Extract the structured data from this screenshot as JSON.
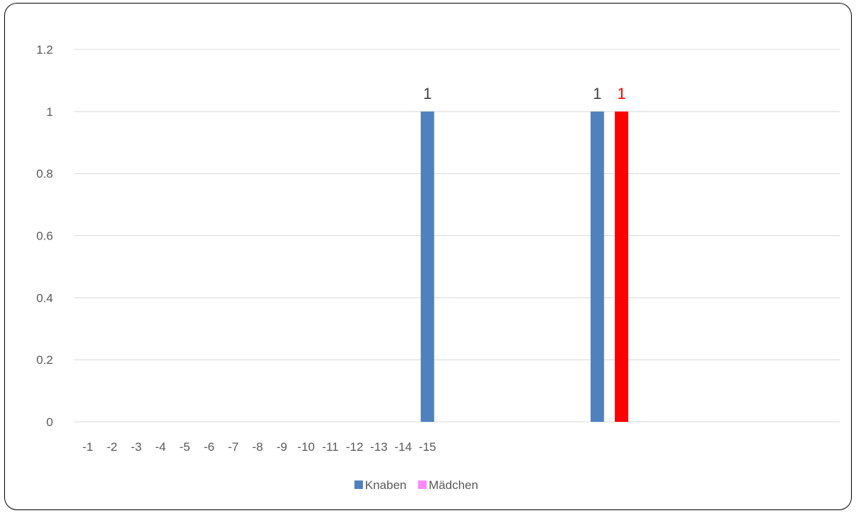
{
  "chart_data": {
    "type": "bar",
    "title": "",
    "xlabel": "",
    "ylabel": "",
    "ylim": [
      0,
      1.2
    ],
    "yticks": [
      "0",
      "0.2",
      "0.4",
      "0.6",
      "0.8",
      "1",
      "1.2"
    ],
    "grid": true,
    "legend_position": "bottom",
    "categories": [
      "-1",
      "-2",
      "-3",
      "-4",
      "-5",
      "-6",
      "-7",
      "-8",
      "-9",
      "-10",
      "-11",
      "-12",
      "-13",
      "-14",
      "-15",
      "",
      "",
      "",
      "",
      "",
      "",
      "",
      ""
    ],
    "series": [
      {
        "name": "Knaben",
        "color": "#4f81bd",
        "values": [
          0,
          0,
          0,
          0,
          0,
          0,
          0,
          0,
          0,
          0,
          0,
          0,
          0,
          0,
          1,
          0,
          0,
          0,
          0,
          0,
          0,
          1,
          0
        ]
      },
      {
        "name": "Mädchen",
        "color": "#ff88ff",
        "values": [
          0,
          0,
          0,
          0,
          0,
          0,
          0,
          0,
          0,
          0,
          0,
          0,
          0,
          0,
          0,
          0,
          0,
          0,
          0,
          0,
          0,
          0,
          1
        ]
      }
    ],
    "point_overrides": [
      {
        "series": "Mädchen",
        "category_index": 22,
        "color": "#ff0000"
      }
    ],
    "data_labels": [
      {
        "series": "Knaben",
        "category_index": 14,
        "text": "1",
        "color": "#404040"
      },
      {
        "series": "Knaben",
        "category_index": 21,
        "text": "1",
        "color": "#404040"
      },
      {
        "series": "Mädchen",
        "category_index": 22,
        "text": "1",
        "color": "#ff0000"
      }
    ]
  }
}
